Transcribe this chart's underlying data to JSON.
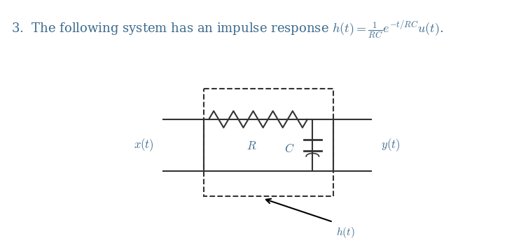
{
  "title_text": "3.  The following system has an impulse response $h(t) = \\frac{1}{RC}e^{-t/RC}u(t)$.",
  "text_color": "#3d6b8e",
  "wire_color": "#333333",
  "box_color": "#333333",
  "background_color": "#ffffff",
  "x_label": "$x(t)$",
  "y_label": "$y(t)$",
  "R_label": "$R$",
  "C_label": "$C$",
  "ht_label": "$h(t)$",
  "title_fontsize": 13,
  "label_fontsize": 12
}
